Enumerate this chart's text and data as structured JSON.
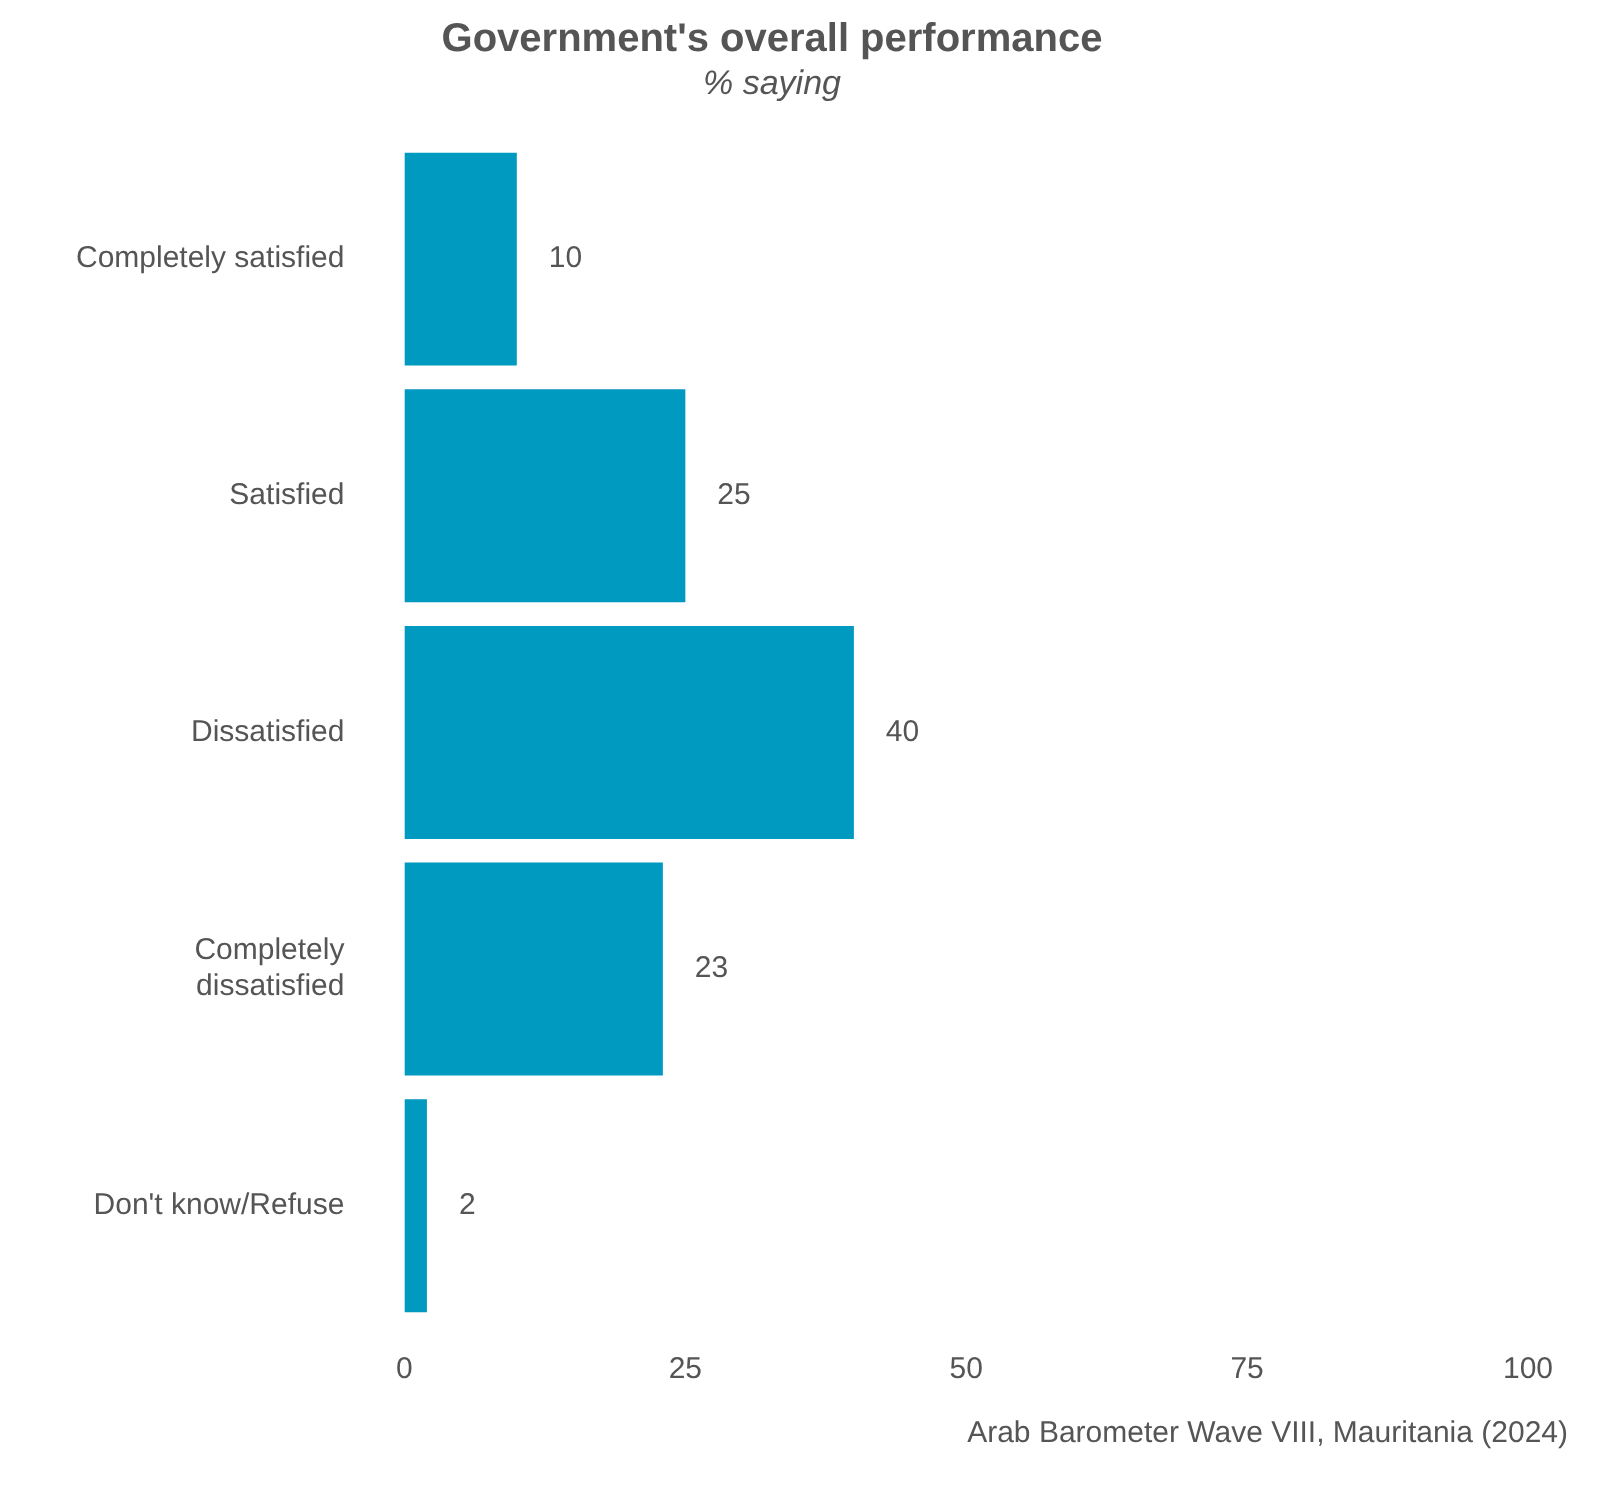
{
  "chart_data": {
    "type": "bar",
    "orientation": "horizontal",
    "title": "Government's overall performance",
    "subtitle": "% saying",
    "categories": [
      "Completely satisfied",
      "Satisfied",
      "Dissatisfied",
      "Completely dissatisfied",
      "Don't know/Refuse"
    ],
    "values": [
      10,
      25,
      40,
      23,
      2
    ],
    "color": "#0099c0",
    "xlim": [
      0,
      100
    ],
    "xticks": [
      0,
      25,
      50,
      75,
      100
    ],
    "grid": false,
    "legend": false,
    "data_labels": true,
    "annotations": [
      "Arab Barometer Wave VIII, Mauritania (2024)"
    ]
  }
}
